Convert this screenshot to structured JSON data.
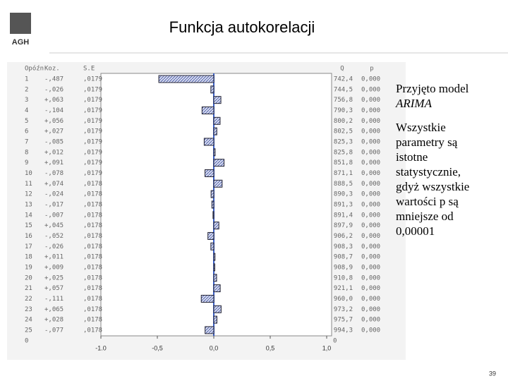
{
  "slide": {
    "title": "Funkcja autokorelacji",
    "logo": "AGH",
    "page_number": "39",
    "text_model_prefix": "Przyjęto model",
    "text_model_name": "ARIMA",
    "text_conclusion": "Wszystkie parametry są istotne statystycznie, gdyż wszystkie wartości p są mniejsze od 0,00001"
  },
  "chart_data": {
    "type": "bar",
    "orientation": "horizontal",
    "columns": [
      "Opóźn",
      "Koz.",
      "S.E",
      "Q",
      "p"
    ],
    "categories": [
      "1",
      "2",
      "3",
      "4",
      "5",
      "6",
      "7",
      "8",
      "9",
      "10",
      "11",
      "12",
      "13",
      "14",
      "15",
      "16",
      "17",
      "18",
      "19",
      "20",
      "21",
      "22",
      "23",
      "24",
      "25"
    ],
    "values": [
      -0.487,
      -0.026,
      0.063,
      -0.104,
      0.056,
      0.027,
      -0.085,
      0.012,
      0.091,
      -0.078,
      0.074,
      -0.024,
      -0.017,
      -0.007,
      0.045,
      -0.052,
      -0.026,
      0.011,
      0.009,
      0.025,
      0.057,
      -0.111,
      0.065,
      0.028,
      -0.077
    ],
    "value_labels": [
      "-,487",
      "-,026",
      "+,063",
      "-,104",
      "+,056",
      "+,027",
      "-,085",
      "+,012",
      "+,091",
      "-,078",
      "+,074",
      "-,024",
      "-,017",
      "-,007",
      "+,045",
      "-,052",
      "-,026",
      "+,011",
      "+,009",
      "+,025",
      "+,057",
      "-,111",
      "+,065",
      "+,028",
      "-,077"
    ],
    "se": [
      ",0179",
      ",0179",
      ",0179",
      ",0179",
      ",0179",
      ",0179",
      ",0179",
      ",0179",
      ",0179",
      ",0179",
      ",0178",
      ",0178",
      ",0178",
      ",0178",
      ",0178",
      ",0178",
      ",0178",
      ",0178",
      ",0178",
      ",0178",
      ",0178",
      ",0178",
      ",0178",
      ",0178",
      ",0178"
    ],
    "q": [
      "742,4",
      "744,5",
      "756,8",
      "790,3",
      "800,2",
      "802,5",
      "825,3",
      "825,8",
      "851,8",
      "871,1",
      "888,5",
      "890,3",
      "891,3",
      "891,4",
      "897,9",
      "906,2",
      "908,3",
      "908,7",
      "908,9",
      "910,8",
      "921,1",
      "960,0",
      "973,2",
      "975,7",
      "994,3"
    ],
    "p": [
      "0,000",
      "0,000",
      "0,000",
      "0,000",
      "0,000",
      "0,000",
      "0,000",
      "0,000",
      "0,000",
      "0,000",
      "0,000",
      "0,000",
      "0,000",
      "0,000",
      "0,000",
      "0,000",
      "0,000",
      "0,000",
      "0,000",
      "0,000",
      "0,000",
      "0,000",
      "0,000",
      "0,000",
      "0,000"
    ],
    "bottom_labels": [
      "0",
      "0"
    ],
    "color": "#3a5fc8",
    "xlim": [
      -1,
      1
    ],
    "xticks": [
      {
        "value": -1,
        "label": "-1.0"
      },
      {
        "value": -0.5,
        "label": "-0,5"
      },
      {
        "value": 0,
        "label": "0,0"
      },
      {
        "value": 0.5,
        "label": "0,5"
      },
      {
        "value": 1,
        "label": "1,0"
      }
    ]
  }
}
